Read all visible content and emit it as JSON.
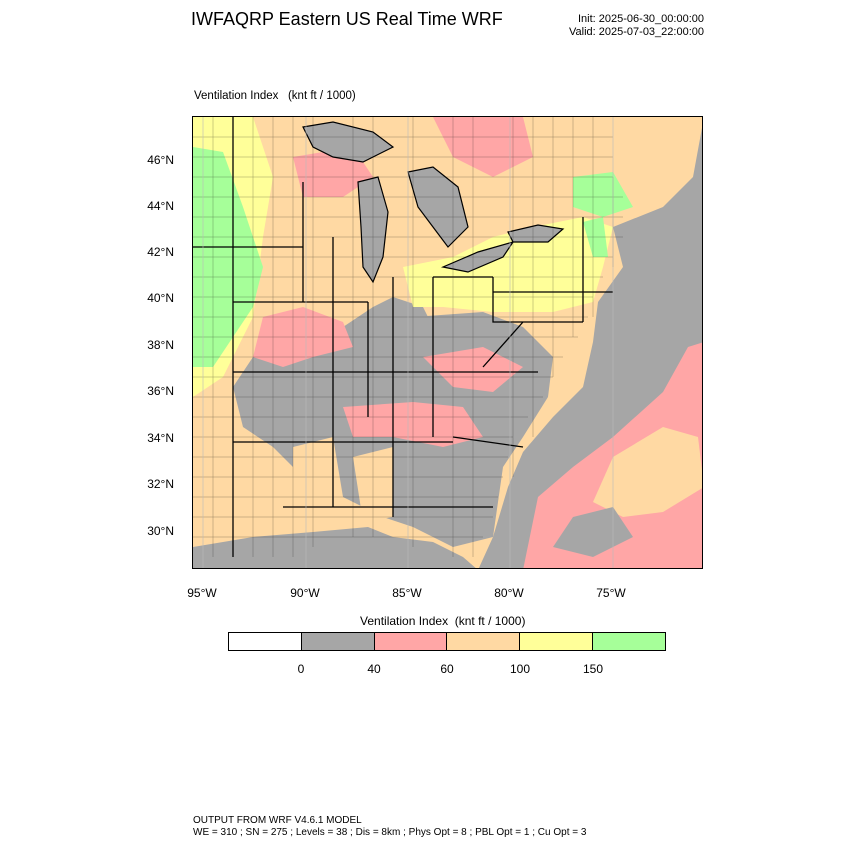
{
  "header": {
    "title": "IWFAQRP Eastern US Real Time WRF",
    "init": "Init: 2025-06-30_00:00:00",
    "valid": "Valid: 2025-07-03_22:00:00"
  },
  "field_label": "Ventilation Index   (knt ft / 1000)",
  "map": {
    "lon_labels": [
      "95°W",
      "90°W",
      "85°W",
      "80°W",
      "75°W"
    ],
    "lat_labels": [
      "46°N",
      "44°N",
      "42°N",
      "40°N",
      "38°N",
      "36°N",
      "34°N",
      "32°N",
      "30°N"
    ],
    "colors": {
      "ocean": "#a6a6a6",
      "lake": "#a6a6a6",
      "land_default": "#ffd9a3",
      "boundary": "#000000"
    },
    "regions": [
      {
        "name": "low-vent-gray",
        "color": "#a6a6a6"
      },
      {
        "name": "vent-40-60-pink",
        "color": "#ffa6a6"
      },
      {
        "name": "vent-60-100-peach",
        "color": "#ffd9a3"
      },
      {
        "name": "vent-100-150-yellow",
        "color": "#ffff99"
      },
      {
        "name": "vent-150-plus-green",
        "color": "#a6ff99"
      }
    ]
  },
  "colorbar": {
    "title": "Ventilation Index  (knt ft / 1000)",
    "colors": [
      "#ffffff",
      "#a6a6a6",
      "#ffa6a6",
      "#ffd9a3",
      "#ffff99",
      "#a6ff99"
    ],
    "labels": [
      "0",
      "40",
      "60",
      "100",
      "150"
    ]
  },
  "footer": {
    "line1": "OUTPUT FROM WRF V4.6.1 MODEL",
    "line2": "WE = 310 ; SN = 275 ; Levels = 38 ; Dis = 8km ; Phys Opt = 8 ; PBL Opt = 1 ; Cu Opt = 3"
  }
}
